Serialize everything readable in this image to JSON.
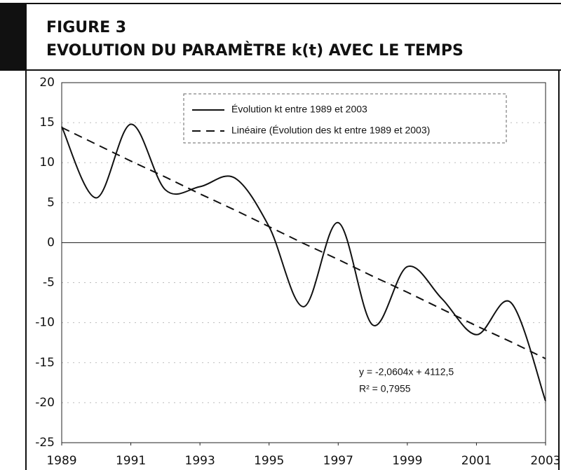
{
  "chart_data": {
    "type": "line",
    "title": "FIGURE 3",
    "subtitle": "EVOLUTION DU PARAMÈTRE k(t) AVEC LE TEMPS",
    "x": [
      1989,
      1990,
      1991,
      1992,
      1993,
      1994,
      1995,
      1996,
      1997,
      1998,
      1999,
      2000,
      2001,
      2002,
      2003
    ],
    "series": [
      {
        "name": "Évolution kt entre 1989 et 2003",
        "color": "#111111",
        "dash": false,
        "values": [
          14.5,
          5.6,
          14.8,
          6.6,
          7.0,
          8.1,
          2.0,
          -8.0,
          2.5,
          -10.3,
          -3.0,
          -7.0,
          -11.5,
          -7.5,
          -19.8
        ]
      },
      {
        "name": "Linéaire (Évolution des kt entre 1989 et 2003)",
        "color": "#111111",
        "dash": true,
        "values": [
          14.4,
          12.3,
          10.2,
          8.2,
          6.1,
          4.1,
          2.0,
          -0.1,
          -2.1,
          -4.2,
          -6.2,
          -8.3,
          -10.4,
          -12.4,
          -14.5
        ]
      }
    ],
    "annotations": [
      "y = -2,0604x + 4112,5",
      "R² = 0,7955"
    ],
    "xlim": [
      1989,
      2003
    ],
    "xticks": [
      1989,
      1991,
      1993,
      1995,
      1997,
      1999,
      2001,
      2003
    ],
    "ylim": [
      -25,
      20
    ],
    "yticks": [
      -25,
      -20,
      -15,
      -10,
      -5,
      0,
      5,
      10,
      15,
      20
    ],
    "grid": true,
    "legend": "top-right"
  }
}
